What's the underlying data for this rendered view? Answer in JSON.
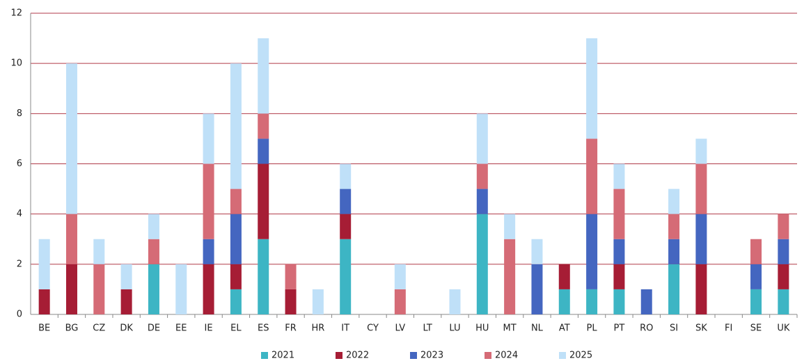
{
  "chart_data": {
    "type": "stacked_bar",
    "categories": [
      "BE",
      "BG",
      "CZ",
      "DK",
      "DE",
      "EE",
      "IE",
      "EL",
      "ES",
      "FR",
      "HR",
      "IT",
      "CY",
      "LV",
      "LT",
      "LU",
      "HU",
      "MT",
      "NL",
      "AT",
      "PL",
      "PT",
      "RO",
      "SI",
      "SK",
      "FI",
      "SE",
      "UK"
    ],
    "series": [
      {
        "name": "2021",
        "color": "#3db5c4",
        "values": [
          0,
          0,
          0,
          0,
          2,
          0,
          0,
          1,
          3,
          0,
          0,
          3,
          0,
          0,
          0,
          0,
          4,
          0,
          0,
          1,
          1,
          1,
          0,
          2,
          0,
          0,
          1,
          1
        ]
      },
      {
        "name": "2022",
        "color": "#a61d35",
        "values": [
          1,
          2,
          0,
          1,
          0,
          0,
          2,
          1,
          3,
          1,
          0,
          1,
          0,
          0,
          0,
          0,
          0,
          0,
          0,
          1,
          0,
          1,
          0,
          0,
          2,
          0,
          0,
          1
        ]
      },
      {
        "name": "2023",
        "color": "#4466c0",
        "values": [
          0,
          0,
          0,
          0,
          0,
          0,
          1,
          2,
          1,
          0,
          0,
          1,
          0,
          0,
          0,
          0,
          1,
          0,
          2,
          0,
          3,
          1,
          1,
          1,
          2,
          0,
          1,
          1
        ]
      },
      {
        "name": "2024",
        "color": "#d56b76",
        "values": [
          0,
          2,
          2,
          0,
          1,
          0,
          3,
          1,
          1,
          1,
          0,
          0,
          0,
          1,
          0,
          0,
          1,
          3,
          0,
          0,
          3,
          2,
          0,
          1,
          2,
          0,
          1,
          1
        ]
      },
      {
        "name": "2025",
        "color": "#bfe0f8",
        "values": [
          2,
          6,
          1,
          1,
          1,
          2,
          2,
          5,
          3,
          0,
          1,
          1,
          0,
          1,
          0,
          1,
          2,
          1,
          1,
          0,
          4,
          1,
          0,
          1,
          1,
          0,
          0,
          0
        ]
      }
    ],
    "ylim": [
      0,
      12
    ],
    "yticks": [
      0,
      2,
      4,
      6,
      8,
      10,
      12
    ],
    "grid": true,
    "legend": "bottom"
  }
}
